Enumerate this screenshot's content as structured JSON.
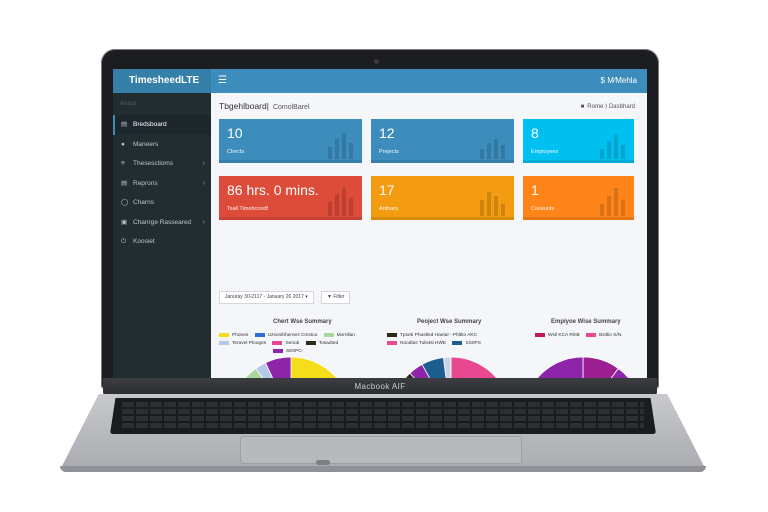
{
  "device": {
    "brand": "Macbook AIF"
  },
  "app": {
    "logo": "TimesheedLTE",
    "menu_icon": "hamburger-icon",
    "user": "$ M⁄Mehla"
  },
  "sidebar": {
    "header": "Ansus",
    "items": [
      {
        "label": "Bredsboard",
        "icon": "dashboard-icon",
        "active": true,
        "has_children": false
      },
      {
        "label": "Maneers",
        "icon": "users-icon",
        "active": false,
        "has_children": false
      },
      {
        "label": "Thesesctioms",
        "icon": "transactions-icon",
        "active": false,
        "has_children": true
      },
      {
        "label": "Reprons",
        "icon": "reports-icon",
        "active": false,
        "has_children": true
      },
      {
        "label": "Charns",
        "icon": "charts-icon",
        "active": false,
        "has_children": false
      },
      {
        "label": "Chanrge Rasseared",
        "icon": "lock-icon",
        "active": false,
        "has_children": true
      },
      {
        "label": "Koosiet",
        "icon": "power-icon",
        "active": false,
        "has_children": false
      }
    ]
  },
  "header": {
    "title": "Tbgehlboard|",
    "subtitle": "ComolBarel",
    "breadcrumb": "Rome  ⟩ Dasbhard"
  },
  "tiles": [
    {
      "value": "10",
      "label": "Clrects",
      "color": "#3c8dbc"
    },
    {
      "value": "12",
      "label": "Prejects",
      "color": "#3c8dbc"
    },
    {
      "value": "8",
      "label": "Employees",
      "color": "#00c0ef"
    },
    {
      "value": "86 hrs. 0 mins.",
      "label": "Tsall Timebcoodf",
      "color": "#dd4b39"
    },
    {
      "value": "17",
      "label": "Aritnars",
      "color": "#f39c12"
    },
    {
      "value": "1",
      "label": "Coosunts",
      "color": "#ff851b"
    }
  ],
  "filter": {
    "date_range": "Januray 30-2117 - January 26 2017 ▾",
    "button": "▼ Filter"
  },
  "chart_data": [
    {
      "type": "pie",
      "title": "Chert Wse Summary",
      "categories": [
        "Phones",
        "Uzsonibheroes Cmstca",
        "Mornllan",
        "Teravel Plooges",
        "Senob",
        "Tosadted",
        "SE0PC-"
      ],
      "colors": [
        "#f5dd1c",
        "#2e6fd6",
        "#a8d8a0",
        "#b7c9e8",
        "#e8488f",
        "#2d2a1c",
        "#8e24aa"
      ],
      "values": [
        52,
        33,
        5,
        3,
        0,
        0,
        7
      ]
    },
    {
      "type": "pie",
      "title": "Peoject Wse Summary",
      "categories": [
        "Tpseb Phastled Haetal - Phlttio AKC",
        "Noodlas Tulistsl HWE",
        "SS0PS"
      ],
      "colors": [
        "#2d2a1c",
        "#e8488f",
        "#1c5f8f"
      ],
      "extra_legend_colors": [
        "#e8488f"
      ],
      "values": [
        25,
        45,
        6
      ],
      "other_slices": [
        {
          "color": "#8e24aa",
          "value": 4
        },
        {
          "color": "#c9d6e4",
          "value": 2
        },
        {
          "color": "#d4c214",
          "value": 18
        }
      ]
    },
    {
      "type": "pie",
      "title": "Empiyoe Wise Summary",
      "categories": [
        "Wsil KCA RlnB",
        "Bsiltio S/N."
      ],
      "colors": [
        "#c2185b",
        "#e8488f"
      ],
      "values": [
        10,
        90
      ],
      "slice_colors": [
        "#9c1f91",
        "#8e24aa"
      ]
    }
  ]
}
